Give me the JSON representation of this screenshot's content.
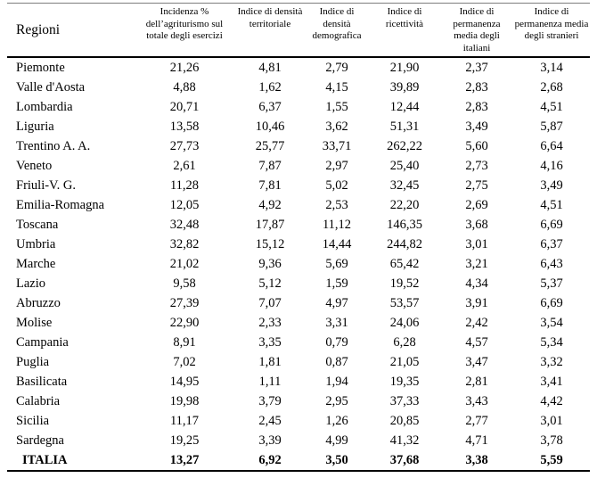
{
  "chart_data": {
    "type": "table",
    "region_column_header": "Regioni",
    "columns": [
      "Incidenza % dell’agriturismo sul totale degli esercizi",
      "Indice di densità territoriale",
      "Indice di densità demografica",
      "Indice di ricettività",
      "Indice di permanenza media degli italiani",
      "Indice di permanenza media degli stranieri"
    ],
    "rows": [
      {
        "region": "Piemonte",
        "values": [
          "21,26",
          "4,81",
          "2,79",
          "21,90",
          "2,37",
          "3,14"
        ]
      },
      {
        "region": "Valle d'Aosta",
        "values": [
          "4,88",
          "1,62",
          "4,15",
          "39,89",
          "2,83",
          "2,68"
        ]
      },
      {
        "region": "Lombardia",
        "values": [
          "20,71",
          "6,37",
          "1,55",
          "12,44",
          "2,83",
          "4,51"
        ]
      },
      {
        "region": "Liguria",
        "values": [
          "13,58",
          "10,46",
          "3,62",
          "51,31",
          "3,49",
          "5,87"
        ]
      },
      {
        "region": "Trentino A. A.",
        "values": [
          "27,73",
          "25,77",
          "33,71",
          "262,22",
          "5,60",
          "6,64"
        ]
      },
      {
        "region": "Veneto",
        "values": [
          "2,61",
          "7,87",
          "2,97",
          "25,40",
          "2,73",
          "4,16"
        ]
      },
      {
        "region": "Friuli-V. G.",
        "values": [
          "11,28",
          "7,81",
          "5,02",
          "32,45",
          "2,75",
          "3,49"
        ]
      },
      {
        "region": "Emilia-Romagna",
        "values": [
          "12,05",
          "4,92",
          "2,53",
          "22,20",
          "2,69",
          "4,51"
        ]
      },
      {
        "region": "Toscana",
        "values": [
          "32,48",
          "17,87",
          "11,12",
          "146,35",
          "3,68",
          "6,69"
        ]
      },
      {
        "region": "Umbria",
        "values": [
          "32,82",
          "15,12",
          "14,44",
          "244,82",
          "3,01",
          "6,37"
        ]
      },
      {
        "region": "Marche",
        "values": [
          "21,02",
          "9,36",
          "5,69",
          "65,42",
          "3,21",
          "6,43"
        ]
      },
      {
        "region": "Lazio",
        "values": [
          "9,58",
          "5,12",
          "1,59",
          "19,52",
          "4,34",
          "5,37"
        ]
      },
      {
        "region": "Abruzzo",
        "values": [
          "27,39",
          "7,07",
          "4,97",
          "53,57",
          "3,91",
          "6,69"
        ]
      },
      {
        "region": "Molise",
        "values": [
          "22,90",
          "2,33",
          "3,31",
          "24,06",
          "2,42",
          "3,54"
        ]
      },
      {
        "region": "Campania",
        "values": [
          "8,91",
          "3,35",
          "0,79",
          "6,28",
          "4,57",
          "5,34"
        ]
      },
      {
        "region": "Puglia",
        "values": [
          "7,02",
          "1,81",
          "0,87",
          "21,05",
          "3,47",
          "3,32"
        ]
      },
      {
        "region": "Basilicata",
        "values": [
          "14,95",
          "1,11",
          "1,94",
          "19,35",
          "2,81",
          "3,41"
        ]
      },
      {
        "region": "Calabria",
        "values": [
          "19,98",
          "3,79",
          "2,95",
          "37,33",
          "3,43",
          "4,42"
        ]
      },
      {
        "region": "Sicilia",
        "values": [
          "11,17",
          "2,45",
          "1,26",
          "20,85",
          "2,77",
          "3,01"
        ]
      },
      {
        "region": "Sardegna",
        "values": [
          "19,25",
          "3,39",
          "4,99",
          "41,32",
          "4,71",
          "3,78"
        ]
      }
    ],
    "total": {
      "region": "ITALIA",
      "values": [
        "13,27",
        "6,92",
        "3,50",
        "37,68",
        "3,38",
        "5,59"
      ]
    }
  }
}
